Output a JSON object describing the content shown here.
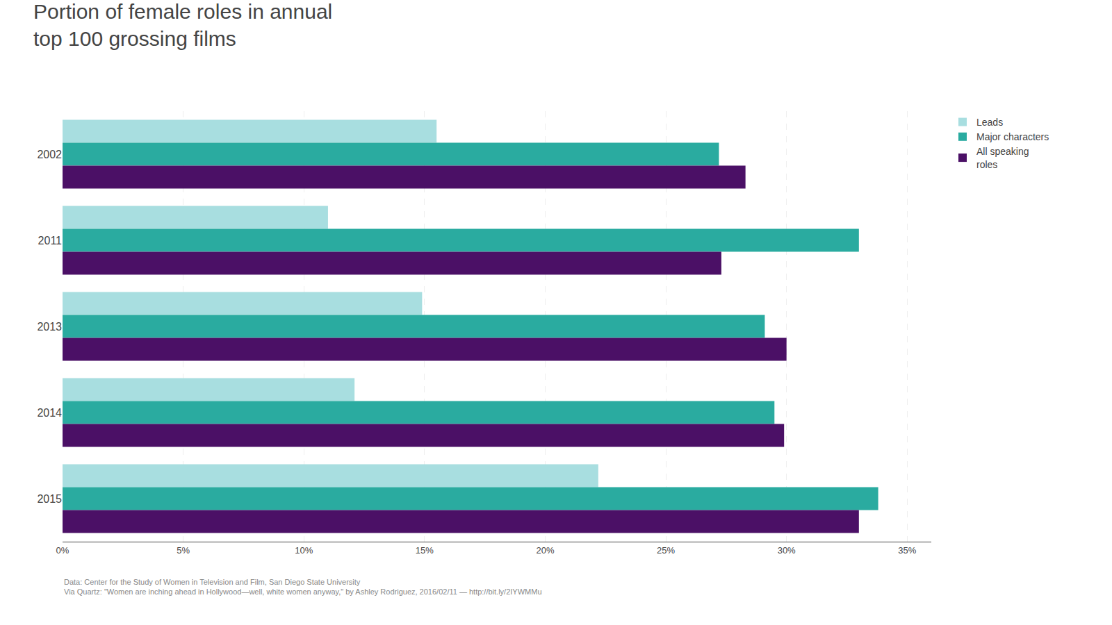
{
  "chart_data": {
    "type": "bar",
    "orientation": "horizontal",
    "title": "Portion of female roles in annual\ntop 100 grossing films",
    "categories": [
      "2002",
      "2011",
      "2013",
      "2014",
      "2015"
    ],
    "series": [
      {
        "name": "Leads",
        "color": "#A8DEE0",
        "values": [
          0.155,
          0.11,
          0.149,
          0.121,
          0.222
        ]
      },
      {
        "name": "Major characters",
        "color": "#2AABA0",
        "values": [
          0.272,
          0.33,
          0.291,
          0.295,
          0.338
        ]
      },
      {
        "name": "All speaking\nroles",
        "color": "#4B1066",
        "values": [
          0.283,
          0.273,
          0.3,
          0.299,
          0.33
        ]
      }
    ],
    "xlim": [
      0,
      0.36
    ],
    "xticks": [
      {
        "value": 0.0,
        "label": "0%"
      },
      {
        "value": 0.05,
        "label": "5%"
      },
      {
        "value": 0.1,
        "label": "10%"
      },
      {
        "value": 0.15,
        "label": "15%"
      },
      {
        "value": 0.2,
        "label": "20%"
      },
      {
        "value": 0.25,
        "label": "25%"
      },
      {
        "value": 0.3,
        "label": "30%"
      },
      {
        "value": 0.35,
        "label": "35%"
      }
    ],
    "grid": true,
    "legend": "upper right",
    "annotations": [
      "Data: Center for the Study of Women in Television and Film, San Diego State University\nVia Quartz: \"Women are inching ahead in Hollywood—well, white women anyway,\" by Ashley Rodriguez, 2016/02/11 — http://bit.ly/2IYWMMu"
    ]
  }
}
